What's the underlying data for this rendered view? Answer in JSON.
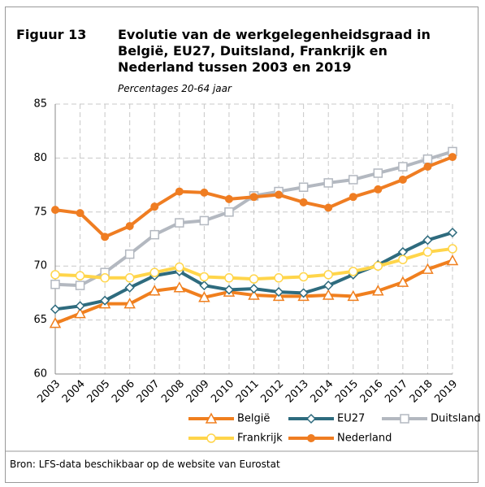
{
  "chart_data": {
    "type": "line",
    "figure_label": "Figuur 13",
    "title": "Evolutie van de werkgelegenheidsgraad in België, EU27, Duitsland, Frankrijk en Nederland tussen 2003 en 2019",
    "subtitle": "Percentages 20-64 jaar",
    "source": "Bron: LFS-data beschikbaar op de website van Eurostat",
    "categories": [
      "2003",
      "2004",
      "2005",
      "2006",
      "2007",
      "2008",
      "2009",
      "2010",
      "2011",
      "2012",
      "2013",
      "2014",
      "2015",
      "2016",
      "2017",
      "2018",
      "2019"
    ],
    "ylim": [
      60,
      85
    ],
    "yticks": [
      60,
      65,
      70,
      75,
      80,
      85
    ],
    "grid": true,
    "series": [
      {
        "name": "België",
        "color": "#f07f1e",
        "marker": "triangle",
        "values": [
          64.7,
          65.6,
          66.5,
          66.5,
          67.7,
          68.0,
          67.1,
          67.6,
          67.3,
          67.2,
          67.2,
          67.3,
          67.2,
          67.7,
          68.5,
          69.7,
          70.5
        ]
      },
      {
        "name": "EU27",
        "color": "#2e6b7e",
        "marker": "diamond",
        "values": [
          66.0,
          66.3,
          66.8,
          68.0,
          69.1,
          69.5,
          68.2,
          67.8,
          67.9,
          67.6,
          67.5,
          68.2,
          69.2,
          70.1,
          71.3,
          72.4,
          73.1
        ]
      },
      {
        "name": "Duitsland",
        "color": "#b3b8c0",
        "marker": "square",
        "values": [
          68.3,
          68.2,
          69.4,
          71.1,
          72.9,
          74.0,
          74.2,
          75.0,
          76.5,
          76.9,
          77.3,
          77.7,
          78.0,
          78.6,
          79.2,
          79.9,
          80.6
        ]
      },
      {
        "name": "Frankrijk",
        "color": "#ffd54a",
        "marker": "circle",
        "values": [
          69.2,
          69.1,
          68.9,
          68.9,
          69.4,
          69.9,
          69.0,
          68.9,
          68.8,
          68.9,
          69.0,
          69.2,
          69.5,
          70.0,
          70.6,
          71.3,
          71.6
        ]
      },
      {
        "name": "Nederland",
        "color": "#ef7d22",
        "marker": "dot",
        "values": [
          75.2,
          74.9,
          72.7,
          73.7,
          75.5,
          76.9,
          76.8,
          76.2,
          76.4,
          76.6,
          75.9,
          75.4,
          76.4,
          77.1,
          78.0,
          79.2,
          80.1
        ]
      }
    ]
  }
}
